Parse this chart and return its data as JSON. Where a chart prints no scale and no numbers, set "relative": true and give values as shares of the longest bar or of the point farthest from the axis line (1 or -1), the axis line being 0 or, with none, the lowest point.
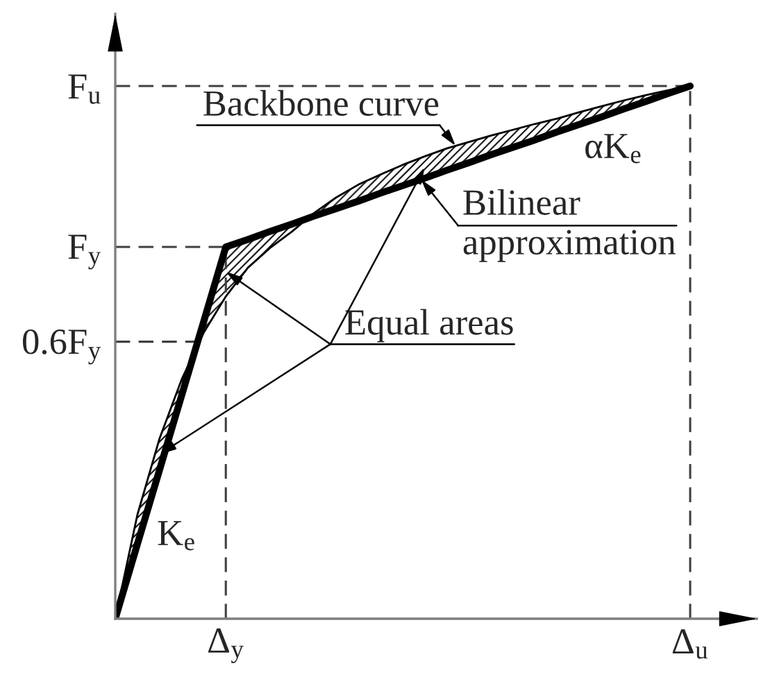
{
  "chart_data": {
    "type": "line",
    "relative": true,
    "categories": [
      null,
      null,
      null,
      null,
      null,
      "Δ$_{y}$",
      null,
      null,
      null,
      null,
      null,
      null,
      null,
      null,
      null,
      null,
      null,
      null,
      null,
      null,
      null,
      null,
      null,
      null,
      null,
      null,
      "Δ$_{u}$"
    ],
    "series": [
      {
        "color": "#000000",
        "values": [
          0,
          0.195,
          0.338,
          0.449,
          0.537,
          0.605,
          0.659,
          0.696,
          0.727,
          0.762,
          0.791,
          0.815,
          0.834,
          0.852,
          0.868,
          0.883,
          0.895,
          0.907,
          0.918,
          0.929,
          0.939,
          0.951,
          0.962,
          0.973,
          0.983,
          0.992,
          1
        ],
        "lower": [
          0,
          0.14,
          0.279,
          0.419,
          0.537,
          0.605,
          0.659,
          0.696,
          0.727,
          0.756,
          0.77,
          0.784,
          0.799,
          0.813,
          0.827,
          0.842,
          0.856,
          0.871,
          0.885,
          0.899,
          0.914,
          0.928,
          0.942,
          0.957,
          0.971,
          0.986,
          1
        ],
        "upper": [
          0,
          0.195,
          0.338,
          0.449,
          0.558,
          0.698,
          0.712,
          0.727,
          0.741,
          0.762,
          0.791,
          0.815,
          0.834,
          0.852,
          0.868,
          0.883,
          0.895,
          0.907,
          0.918,
          0.929,
          0.939,
          0.951,
          0.962,
          0.973,
          0.983,
          0.992,
          1
        ]
      },
      {
        "color": "#000000",
        "values": [
          0,
          0.14,
          0.279,
          0.419,
          0.558,
          0.698,
          0.712,
          0.727,
          0.741,
          0.756,
          0.77,
          0.784,
          0.799,
          0.813,
          0.827,
          0.842,
          0.856,
          0.871,
          0.885,
          0.899,
          0.914,
          0.928,
          0.942,
          0.957,
          0.971,
          0.986,
          1
        ]
      }
    ],
    "ref_lines": [
      {
        "axis": "y",
        "value": 1,
        "label": "F$_{u}$",
        "color": "#404040",
        "line_style": "dashed"
      },
      {
        "axis": "y",
        "value": 0.698,
        "label": "F$_{y}$",
        "color": "#404040",
        "line_style": "dashed"
      },
      {
        "axis": "y",
        "value": 0.52,
        "label": "0.6F$_{y}$",
        "color": "#404040",
        "line_style": "dashed"
      },
      {
        "axis": "x",
        "value": "Δ$_{y}$",
        "color": "#404040",
        "line_style": "dashed"
      },
      {
        "axis": "x",
        "value": "Δ$_{u}$",
        "color": "#404040",
        "line_style": "dashed"
      }
    ],
    "annotations": [
      "Backbone curve",
      "Bilinear approximation",
      "Equal areas",
      "K$_{e}$",
      "αK$_{e}$"
    ]
  }
}
